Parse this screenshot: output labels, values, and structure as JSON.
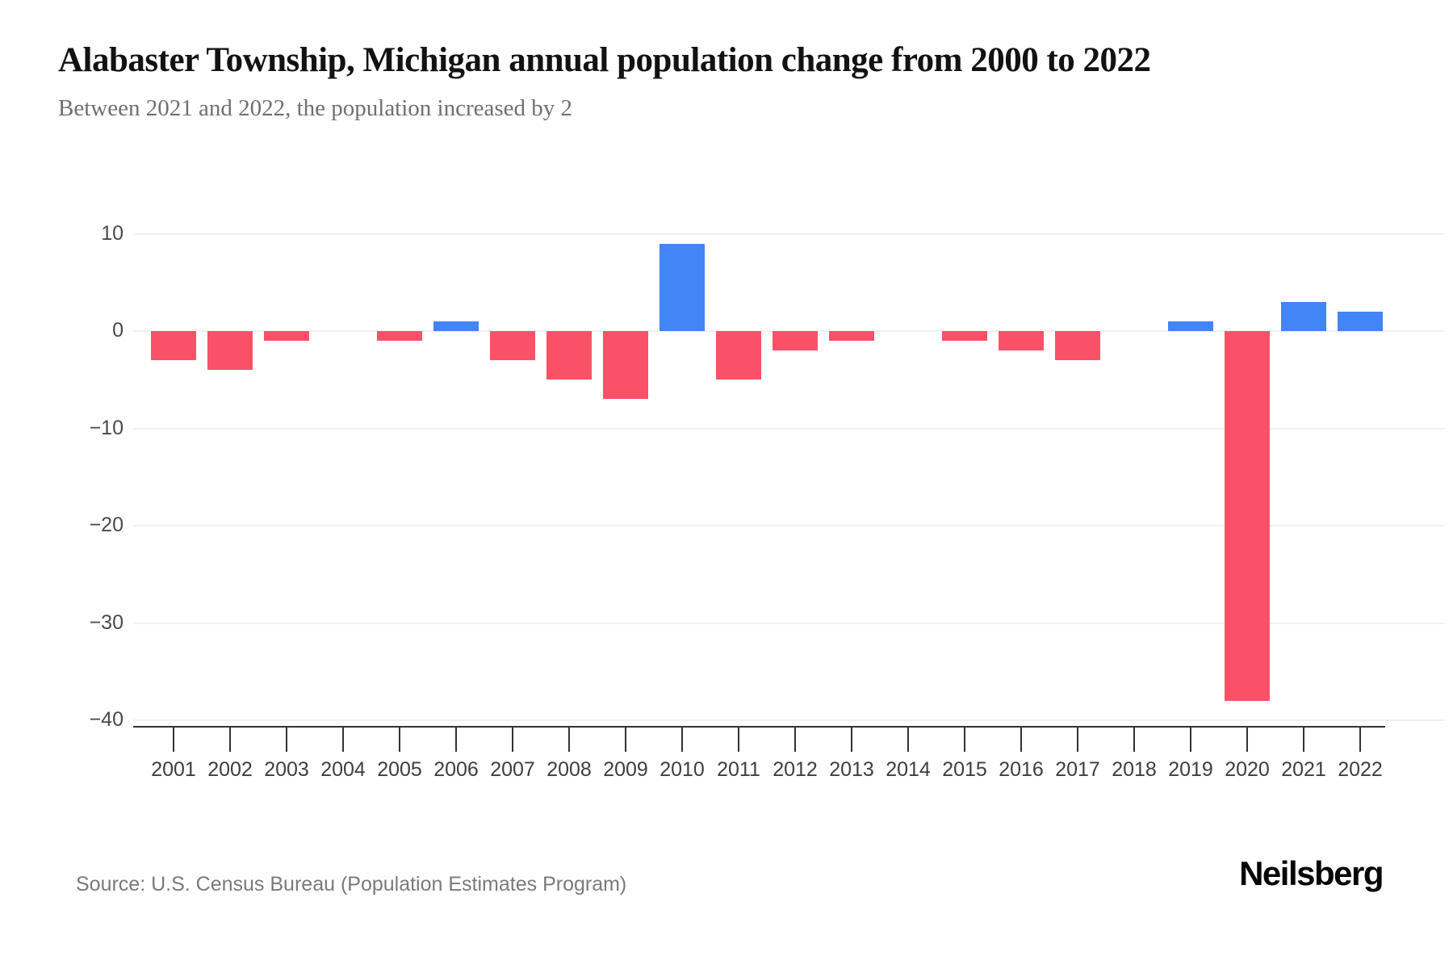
{
  "chart_data": {
    "type": "bar",
    "title": "Alabaster Township, Michigan annual population change from 2000 to 2022",
    "subtitle": "Between 2021 and 2022, the population increased by 2",
    "categories": [
      "2001",
      "2002",
      "2003",
      "2004",
      "2005",
      "2006",
      "2007",
      "2008",
      "2009",
      "2010",
      "2011",
      "2012",
      "2013",
      "2014",
      "2015",
      "2016",
      "2017",
      "2018",
      "2019",
      "2020",
      "2021",
      "2022"
    ],
    "values": [
      -3,
      -4,
      -1,
      0,
      -1,
      1,
      -3,
      -5,
      -7,
      9,
      -5,
      -2,
      -1,
      0,
      -1,
      -2,
      -3,
      0,
      1,
      -38,
      3,
      2
    ],
    "xlabel": "",
    "ylabel": "",
    "ylim": [
      -40,
      10
    ],
    "y_ticks": [
      10,
      0,
      -10,
      -20,
      -30,
      -40
    ],
    "grid": true,
    "legend": false,
    "colors": {
      "positive_bar": "#4285f4",
      "negative_bar": "#fa5169",
      "gridline": "#f0f0f0",
      "axis": "#333333"
    }
  },
  "footer": {
    "source": "Source: U.S. Census Bureau (Population Estimates Program)",
    "brand": "Neilsberg"
  }
}
